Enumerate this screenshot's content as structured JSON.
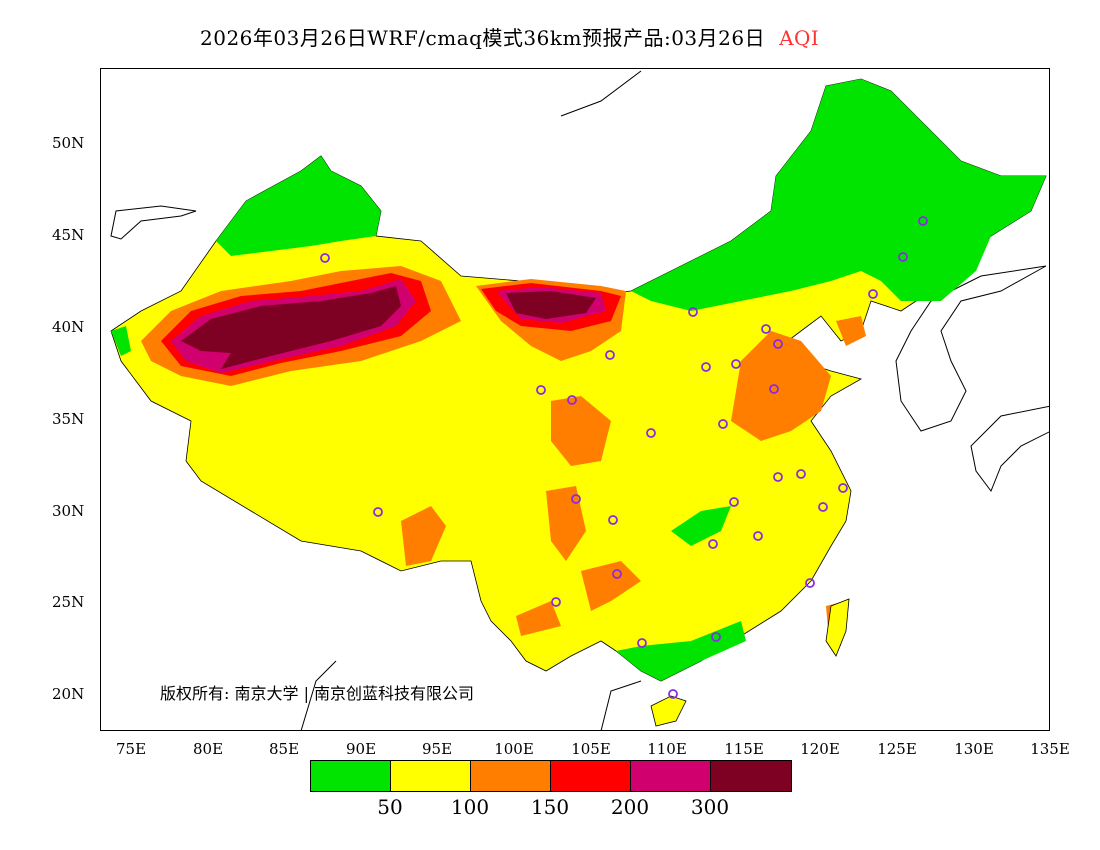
{
  "title": {
    "text": "2026年03月26日WRF/cmaq模式36km预报产品:03月26日",
    "variable": "AQI"
  },
  "axes": {
    "lat_labels": [
      "50N",
      "45N",
      "40N",
      "35N",
      "30N",
      "25N",
      "20N"
    ],
    "lon_labels": [
      "75E",
      "80E",
      "85E",
      "90E",
      "95E",
      "100E",
      "105E",
      "110E",
      "115E",
      "120E",
      "125E",
      "130E",
      "135E"
    ]
  },
  "legend": {
    "colors": [
      "#00e400",
      "#ffff00",
      "#ff7e00",
      "#ff0000",
      "#d0006e",
      "#7e0023"
    ],
    "labels": [
      "50",
      "100",
      "150",
      "200",
      "300"
    ]
  },
  "copyright": "版权所有: 南京大学 | 南京创蓝科技有限公司"
}
